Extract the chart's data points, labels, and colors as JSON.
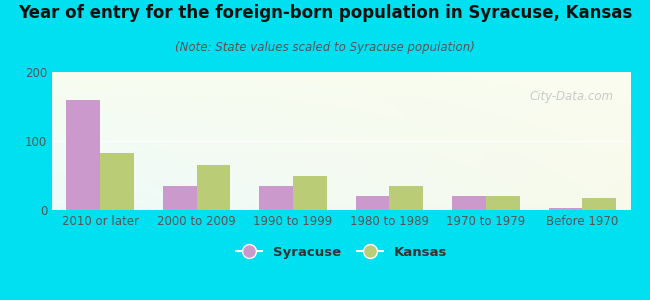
{
  "title": "Year of entry for the foreign-born population in Syracuse, Kansas",
  "subtitle": "(Note: State values scaled to Syracuse population)",
  "categories": [
    "2010 or later",
    "2000 to 2009",
    "1990 to 1999",
    "1980 to 1989",
    "1970 to 1979",
    "Before 1970"
  ],
  "syracuse_values": [
    160,
    35,
    35,
    20,
    20,
    3
  ],
  "kansas_values": [
    83,
    65,
    50,
    35,
    20,
    18
  ],
  "syracuse_color": "#cc99cc",
  "kansas_color": "#bbcc77",
  "bg_outer": "#00e0f0",
  "ylim": [
    0,
    200
  ],
  "yticks": [
    0,
    100,
    200
  ],
  "bar_width": 0.35,
  "legend_labels": [
    "Syracuse",
    "Kansas"
  ],
  "watermark": "City-Data.com",
  "title_fontsize": 12,
  "subtitle_fontsize": 8.5,
  "tick_fontsize": 8.5
}
